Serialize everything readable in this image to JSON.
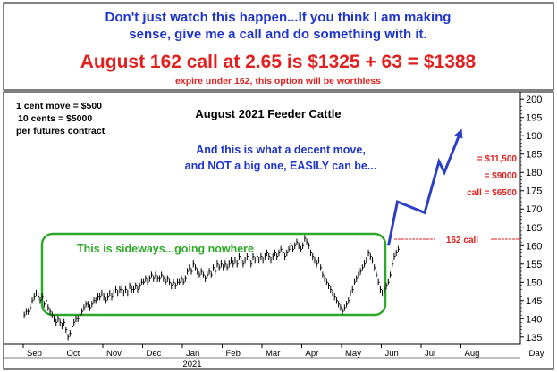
{
  "header": {
    "line1": "Don't just watch this happen...If you think I am making",
    "line2": "sense, give me a call and do something with it.",
    "offer": "August 162 call at 2.65 is $1325 + 63 = $1388",
    "warning": "expire under 162, this option will be worthless"
  },
  "notes": {
    "line1": "1 cent move = $500",
    "line2": "10 cents = $5000",
    "line3": "per futures contract"
  },
  "annotations": {
    "move_line1": "And this is what a decent move,",
    "move_line2": "and NOT a big one, EASILY can be...",
    "sideways": "This is sideways...going nowhere",
    "call_label": "162 call",
    "value_11500": "= $11,500",
    "value_9000": "= $9000",
    "value_6500": "call = $6500"
  },
  "colors": {
    "header_blue": "#1f35c8",
    "header_red": "#e0201e",
    "sideways_box": "#2fa82a",
    "projection": "#2c3fc4",
    "call_line": "#e0201e"
  },
  "chart_data": {
    "type": "bar",
    "title": "August 2021 Feeder Cattle",
    "xlabel": "",
    "ylabel": "",
    "x_ticks": [
      "Sep",
      "Oct",
      "Nov",
      "Dec",
      "Jan",
      "Feb",
      "Mar",
      "Apr",
      "May",
      "Jun",
      "Jul",
      "Aug"
    ],
    "x_subtick": "2021",
    "x_axis_unit": "Day",
    "y_ticks": [
      135,
      140,
      145,
      150,
      155,
      160,
      165,
      170,
      175,
      180,
      185,
      190,
      195,
      200
    ],
    "ylim": [
      133,
      202
    ],
    "grid": false,
    "price_series": [
      {
        "month": "Sep",
        "values": [
          141,
          142,
          142,
          143,
          145,
          146,
          147,
          146,
          145,
          146,
          144,
          145,
          143,
          142,
          141,
          140,
          139,
          140,
          139,
          138
        ]
      },
      {
        "month": "Oct",
        "values": [
          139,
          137,
          135,
          136,
          138,
          139,
          140,
          140,
          141,
          142,
          143,
          144,
          144,
          143,
          144,
          145,
          145,
          146,
          146,
          147
        ]
      },
      {
        "month": "Nov",
        "values": [
          146,
          145,
          146,
          147,
          146,
          147,
          148,
          147,
          148,
          148,
          147,
          148,
          147,
          149,
          148,
          148,
          149,
          148,
          149,
          150
        ]
      },
      {
        "month": "Dec",
        "values": [
          150,
          151,
          150,
          151,
          152,
          151,
          152,
          151,
          151,
          152,
          151,
          150,
          151,
          150,
          149,
          150,
          149,
          150,
          150,
          151
        ]
      },
      {
        "month": "Jan",
        "values": [
          150,
          151,
          153,
          154,
          153,
          155,
          154,
          153,
          152,
          153,
          152,
          151,
          152,
          153,
          152,
          154,
          153,
          155,
          154,
          155
        ]
      },
      {
        "month": "Feb",
        "values": [
          154,
          155,
          154,
          155,
          156,
          155,
          156,
          155,
          157,
          156,
          155,
          156,
          157,
          156,
          155,
          157,
          156,
          157,
          156,
          157
        ]
      },
      {
        "month": "Mar",
        "values": [
          156,
          157,
          158,
          157,
          156,
          157,
          158,
          157,
          158,
          159,
          158,
          157,
          158,
          159,
          160,
          159,
          160,
          161,
          160,
          159
        ]
      },
      {
        "month": "Apr",
        "values": [
          160,
          162,
          161,
          160,
          158,
          157,
          156,
          155,
          156,
          154,
          152,
          151,
          150,
          149,
          148,
          147,
          146,
          145,
          144,
          143
        ]
      },
      {
        "month": "May",
        "values": [
          142,
          143,
          144,
          145,
          147,
          148,
          150,
          151,
          152,
          153,
          154,
          155,
          156,
          158,
          157,
          156,
          154,
          152,
          150,
          148
        ]
      },
      {
        "month": "Jun",
        "values": [
          147,
          148,
          149,
          150,
          152,
          155,
          157,
          158,
          159
        ]
      }
    ],
    "projection": {
      "x": [
        "Jun",
        "Jun",
        "Jul",
        "Jul",
        "Jul",
        "Jul"
      ],
      "y": [
        160,
        172,
        169,
        183,
        180,
        191
      ],
      "label": ""
    },
    "horizontal_line": {
      "y": 162,
      "label": "162 call"
    },
    "sideways_range": {
      "low": 142,
      "high": 163,
      "from": "Sep",
      "to": "Jun"
    }
  }
}
